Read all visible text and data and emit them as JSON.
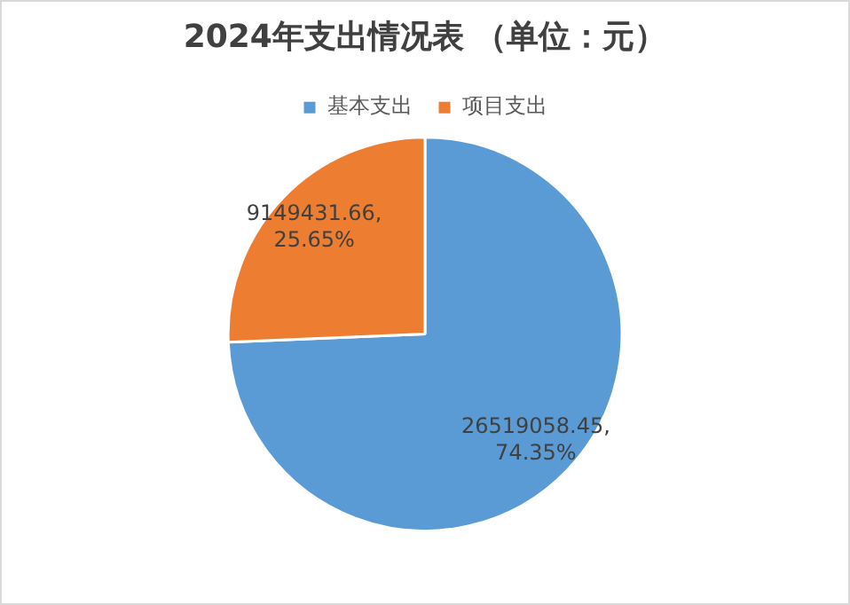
{
  "chart_data": {
    "type": "pie",
    "title": "2024年支出情况表 （单位：元）",
    "categories": [
      "基本支出",
      "项目支出"
    ],
    "values": [
      26519058.45,
      9149431.66
    ],
    "colors": [
      "#5b9bd5",
      "#ed7d31"
    ],
    "value_labels": [
      "26519058.45,\n74.35%",
      "9149431.66,\n25.65%"
    ],
    "legend": "top"
  }
}
